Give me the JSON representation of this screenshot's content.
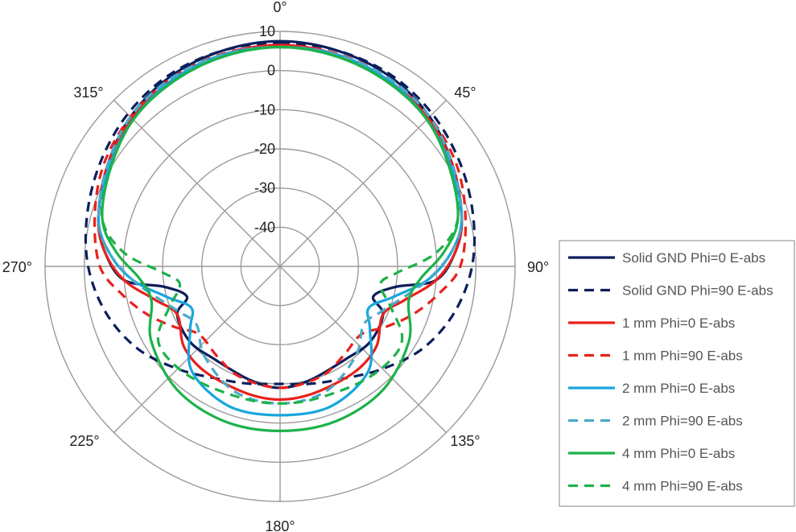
{
  "chart_data": {
    "type": "polar-line",
    "radial_ticks": [
      "-40",
      "-30",
      "-20",
      "-10",
      "0",
      "10"
    ],
    "radial_range": [
      -50,
      10
    ],
    "angle_labels": [
      "0°",
      "45°",
      "90°",
      "135°",
      "180°",
      "225°",
      "270°",
      "315°"
    ],
    "grid": true,
    "legend_position": "right",
    "series": [
      {
        "name": "Solid GND Phi=0 E-abs",
        "color": "#0b1f5c",
        "dash": false,
        "points": [
          [
            0,
            7.5
          ],
          [
            15,
            7
          ],
          [
            30,
            6
          ],
          [
            45,
            4
          ],
          [
            60,
            1
          ],
          [
            75,
            -2
          ],
          [
            85,
            -5
          ],
          [
            95,
            -10
          ],
          [
            100,
            -20
          ],
          [
            108,
            -25
          ],
          [
            115,
            -21
          ],
          [
            130,
            -20
          ],
          [
            145,
            -21
          ],
          [
            165,
            -20
          ],
          [
            180,
            -19
          ],
          [
            195,
            -20
          ],
          [
            215,
            -21
          ],
          [
            230,
            -20
          ],
          [
            245,
            -21
          ],
          [
            252,
            -25
          ],
          [
            260,
            -20
          ],
          [
            265,
            -10
          ],
          [
            275,
            -5
          ],
          [
            285,
            -2
          ],
          [
            300,
            1
          ],
          [
            315,
            4
          ],
          [
            330,
            6
          ],
          [
            345,
            7
          ]
        ]
      },
      {
        "name": "Solid GND Phi=90 E-abs",
        "color": "#0b1f5c",
        "dash": true,
        "points": [
          [
            0,
            7
          ],
          [
            15,
            7
          ],
          [
            30,
            6.5
          ],
          [
            45,
            5
          ],
          [
            60,
            3
          ],
          [
            75,
            1
          ],
          [
            90,
            -1
          ],
          [
            105,
            -4
          ],
          [
            120,
            -8
          ],
          [
            135,
            -13
          ],
          [
            150,
            -17
          ],
          [
            165,
            -19
          ],
          [
            180,
            -20
          ],
          [
            195,
            -19
          ],
          [
            210,
            -17
          ],
          [
            225,
            -13
          ],
          [
            240,
            -8
          ],
          [
            255,
            -4
          ],
          [
            270,
            -1
          ],
          [
            285,
            1
          ],
          [
            300,
            3
          ],
          [
            315,
            5
          ],
          [
            330,
            6.5
          ],
          [
            345,
            7
          ]
        ]
      },
      {
        "name": "1 mm Phi=0 E-abs",
        "color": "#e8211d",
        "dash": false,
        "points": [
          [
            0,
            6.5
          ],
          [
            15,
            6
          ],
          [
            30,
            5
          ],
          [
            45,
            3.5
          ],
          [
            60,
            1
          ],
          [
            75,
            -2
          ],
          [
            85,
            -5
          ],
          [
            95,
            -10
          ],
          [
            105,
            -17
          ],
          [
            115,
            -21
          ],
          [
            130,
            -18
          ],
          [
            145,
            -17
          ],
          [
            165,
            -16.5
          ],
          [
            180,
            -16
          ],
          [
            195,
            -16.5
          ],
          [
            215,
            -17
          ],
          [
            230,
            -18
          ],
          [
            245,
            -21
          ],
          [
            255,
            -17
          ],
          [
            265,
            -10
          ],
          [
            275,
            -5
          ],
          [
            285,
            -2
          ],
          [
            300,
            1
          ],
          [
            315,
            3.5
          ],
          [
            330,
            5
          ],
          [
            345,
            6
          ]
        ]
      },
      {
        "name": "1 mm Phi=90 E-abs",
        "color": "#e8211d",
        "dash": true,
        "points": [
          [
            0,
            6.5
          ],
          [
            15,
            6.2
          ],
          [
            30,
            5.5
          ],
          [
            45,
            4
          ],
          [
            60,
            2
          ],
          [
            75,
            -1
          ],
          [
            90,
            -4
          ],
          [
            100,
            -9
          ],
          [
            110,
            -14
          ],
          [
            120,
            -19
          ],
          [
            130,
            -23
          ],
          [
            145,
            -22
          ],
          [
            160,
            -20
          ],
          [
            180,
            -19
          ],
          [
            200,
            -20
          ],
          [
            215,
            -22
          ],
          [
            230,
            -23
          ],
          [
            240,
            -19
          ],
          [
            250,
            -14
          ],
          [
            260,
            -9
          ],
          [
            270,
            -4
          ],
          [
            285,
            -1
          ],
          [
            300,
            2
          ],
          [
            315,
            4
          ],
          [
            330,
            5.5
          ],
          [
            345,
            6.2
          ]
        ]
      },
      {
        "name": "2 mm Phi=0 E-abs",
        "color": "#18a6df",
        "dash": false,
        "points": [
          [
            0,
            6
          ],
          [
            15,
            6
          ],
          [
            30,
            5
          ],
          [
            45,
            3
          ],
          [
            60,
            0.5
          ],
          [
            75,
            -2
          ],
          [
            85,
            -6
          ],
          [
            95,
            -12
          ],
          [
            105,
            -20
          ],
          [
            115,
            -25
          ],
          [
            125,
            -22
          ],
          [
            140,
            -15
          ],
          [
            160,
            -12
          ],
          [
            180,
            -12
          ],
          [
            200,
            -12
          ],
          [
            220,
            -15
          ],
          [
            235,
            -22
          ],
          [
            245,
            -25
          ],
          [
            255,
            -20
          ],
          [
            265,
            -12
          ],
          [
            275,
            -6
          ],
          [
            285,
            -2
          ],
          [
            300,
            0.5
          ],
          [
            315,
            3
          ],
          [
            330,
            5
          ],
          [
            345,
            6
          ]
        ]
      },
      {
        "name": "2 mm Phi=90 E-abs",
        "color": "#4aaac8",
        "dash": true,
        "points": [
          [
            0,
            6
          ],
          [
            15,
            6
          ],
          [
            30,
            5.5
          ],
          [
            45,
            4
          ],
          [
            60,
            1
          ],
          [
            75,
            -2
          ],
          [
            85,
            -6
          ],
          [
            95,
            -12
          ],
          [
            105,
            -18
          ],
          [
            115,
            -22
          ],
          [
            125,
            -24
          ],
          [
            140,
            -20
          ],
          [
            160,
            -16
          ],
          [
            180,
            -15
          ],
          [
            200,
            -16
          ],
          [
            220,
            -20
          ],
          [
            235,
            -24
          ],
          [
            245,
            -22
          ],
          [
            255,
            -18
          ],
          [
            265,
            -12
          ],
          [
            275,
            -6
          ],
          [
            285,
            -2
          ],
          [
            300,
            1
          ],
          [
            315,
            4
          ],
          [
            330,
            5.5
          ],
          [
            345,
            6
          ]
        ]
      },
      {
        "name": "4 mm Phi=0 E-abs",
        "color": "#1db24a",
        "dash": false,
        "points": [
          [
            0,
            6
          ],
          [
            15,
            5.5
          ],
          [
            30,
            4.5
          ],
          [
            45,
            3
          ],
          [
            60,
            0
          ],
          [
            75,
            -3
          ],
          [
            85,
            -8
          ],
          [
            95,
            -14
          ],
          [
            105,
            -16
          ],
          [
            120,
            -12
          ],
          [
            140,
            -9
          ],
          [
            160,
            -8
          ],
          [
            180,
            -8
          ],
          [
            200,
            -8
          ],
          [
            220,
            -9
          ],
          [
            240,
            -12
          ],
          [
            255,
            -16
          ],
          [
            265,
            -14
          ],
          [
            275,
            -8
          ],
          [
            285,
            -3
          ],
          [
            300,
            0
          ],
          [
            315,
            3
          ],
          [
            330,
            4.5
          ],
          [
            345,
            5.5
          ]
        ]
      },
      {
        "name": "4 mm Phi=90 E-abs",
        "color": "#1db24a",
        "dash": true,
        "points": [
          [
            0,
            6
          ],
          [
            15,
            5.5
          ],
          [
            30,
            4.5
          ],
          [
            45,
            3
          ],
          [
            60,
            0
          ],
          [
            75,
            -3
          ],
          [
            85,
            -10
          ],
          [
            93,
            -20
          ],
          [
            100,
            -24
          ],
          [
            110,
            -20
          ],
          [
            120,
            -14
          ],
          [
            130,
            -13
          ],
          [
            145,
            -14
          ],
          [
            165,
            -15
          ],
          [
            180,
            -15
          ],
          [
            195,
            -15
          ],
          [
            215,
            -14
          ],
          [
            230,
            -13
          ],
          [
            240,
            -14
          ],
          [
            250,
            -20
          ],
          [
            260,
            -24
          ],
          [
            267,
            -20
          ],
          [
            275,
            -10
          ],
          [
            285,
            -3
          ],
          [
            300,
            0
          ],
          [
            315,
            3
          ],
          [
            330,
            4.5
          ],
          [
            345,
            5.5
          ]
        ]
      }
    ]
  }
}
